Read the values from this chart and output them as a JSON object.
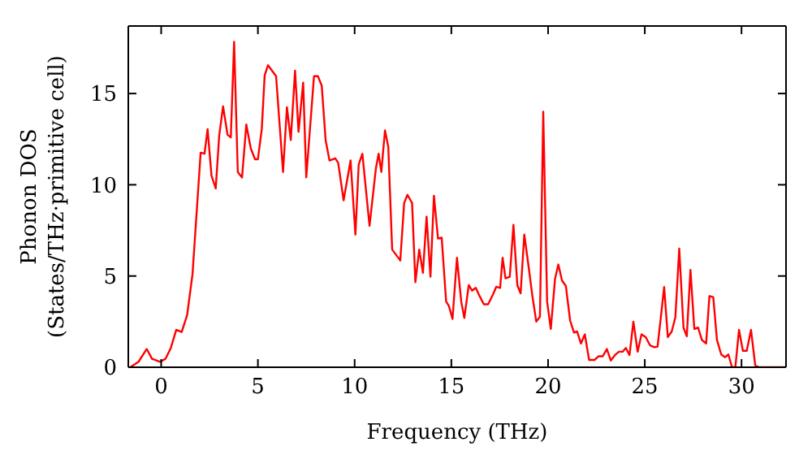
{
  "chart_data": {
    "type": "line",
    "xlabel": "Frequency (THz)",
    "ylabel": "Phonon DOS\n(States/THz·primitive cell)",
    "xlim": [
      -1.7,
      32.3
    ],
    "ylim": [
      0,
      18.7
    ],
    "xticks": [
      0,
      5,
      10,
      15,
      20,
      25,
      30
    ],
    "yticks": [
      0,
      5,
      10,
      15
    ],
    "marker": "none",
    "line_style": "solid",
    "x": [
      -1.6,
      -1.17,
      -0.75,
      -0.47,
      -0.05,
      0.22,
      0.5,
      0.78,
      1.06,
      1.34,
      1.62,
      2.04,
      2.24,
      2.4,
      2.6,
      2.82,
      3.0,
      3.2,
      3.43,
      3.6,
      3.77,
      3.96,
      4.18,
      4.4,
      4.63,
      4.85,
      5.0,
      5.2,
      5.35,
      5.52,
      5.94,
      6.3,
      6.5,
      6.7,
      6.92,
      7.1,
      7.34,
      7.5,
      7.9,
      8.1,
      8.3,
      8.5,
      8.7,
      9.0,
      9.15,
      9.43,
      9.79,
      10.04,
      10.21,
      10.4,
      10.77,
      11.1,
      11.24,
      11.38,
      11.57,
      11.74,
      11.94,
      12.36,
      12.56,
      12.73,
      12.97,
      13.14,
      13.34,
      13.53,
      13.72,
      13.92,
      14.1,
      14.31,
      14.5,
      14.73,
      14.87,
      15.06,
      15.29,
      15.51,
      15.67,
      15.9,
      16.07,
      16.26,
      16.46,
      16.68,
      16.9,
      17.18,
      17.32,
      17.52,
      17.65,
      17.8,
      18.02,
      18.21,
      18.41,
      18.58,
      18.77,
      18.97,
      19.19,
      19.39,
      19.58,
      19.75,
      19.95,
      20.14,
      20.36,
      20.53,
      20.72,
      20.92,
      21.14,
      21.34,
      21.5,
      21.7,
      21.9,
      22.12,
      22.4,
      22.6,
      22.82,
      23.04,
      23.24,
      23.46,
      23.66,
      23.85,
      24.02,
      24.21,
      24.41,
      24.63,
      24.83,
      25.05,
      25.27,
      25.5,
      25.66,
      25.83,
      26.0,
      26.19,
      26.39,
      26.58,
      26.78,
      27.0,
      27.17,
      27.36,
      27.56,
      27.76,
      27.95,
      28.17,
      28.34,
      28.54,
      28.73,
      28.95,
      29.15,
      29.32,
      29.51,
      29.68,
      29.87,
      30.07,
      30.27,
      30.49,
      30.71,
      30.9,
      32.3
    ],
    "series": [
      {
        "color": "#ff0000",
        "values": [
          0.0,
          0.3,
          1.0,
          0.46,
          0.3,
          0.46,
          1.06,
          2.05,
          1.93,
          2.85,
          5.1,
          11.76,
          11.7,
          13.05,
          10.5,
          9.8,
          12.7,
          14.3,
          12.74,
          12.6,
          17.83,
          10.7,
          10.4,
          13.3,
          12.0,
          11.4,
          11.4,
          13.05,
          16.0,
          16.55,
          15.95,
          10.7,
          14.25,
          12.45,
          16.25,
          12.9,
          15.6,
          10.4,
          15.95,
          15.95,
          15.43,
          12.45,
          11.33,
          11.45,
          11.2,
          9.15,
          11.33,
          7.27,
          11.1,
          11.7,
          7.75,
          10.9,
          11.7,
          10.7,
          12.98,
          12.08,
          6.45,
          5.85,
          9.0,
          9.45,
          9.0,
          4.66,
          6.45,
          5.17,
          8.25,
          4.96,
          9.4,
          7.05,
          7.1,
          3.6,
          3.37,
          2.65,
          6.0,
          3.6,
          2.7,
          4.5,
          4.2,
          4.35,
          3.9,
          3.45,
          3.45,
          4.05,
          4.41,
          4.35,
          6.0,
          4.87,
          4.96,
          7.8,
          4.5,
          4.05,
          7.27,
          5.7,
          3.9,
          2.5,
          2.77,
          14.0,
          3.6,
          2.1,
          4.84,
          5.63,
          4.75,
          4.45,
          2.56,
          1.9,
          1.96,
          1.3,
          1.8,
          0.4,
          0.4,
          0.6,
          0.6,
          1.0,
          0.37,
          0.67,
          0.85,
          0.85,
          1.06,
          0.67,
          2.5,
          0.85,
          1.8,
          1.65,
          1.2,
          1.1,
          1.13,
          2.74,
          4.4,
          1.65,
          1.96,
          2.74,
          6.5,
          2.17,
          1.7,
          5.33,
          2.1,
          2.17,
          1.5,
          1.3,
          3.9,
          3.84,
          1.5,
          0.7,
          0.55,
          0.7,
          0.0,
          0.0,
          2.05,
          0.9,
          0.9,
          2.05,
          0.1,
          0.0,
          0.0
        ]
      }
    ]
  }
}
